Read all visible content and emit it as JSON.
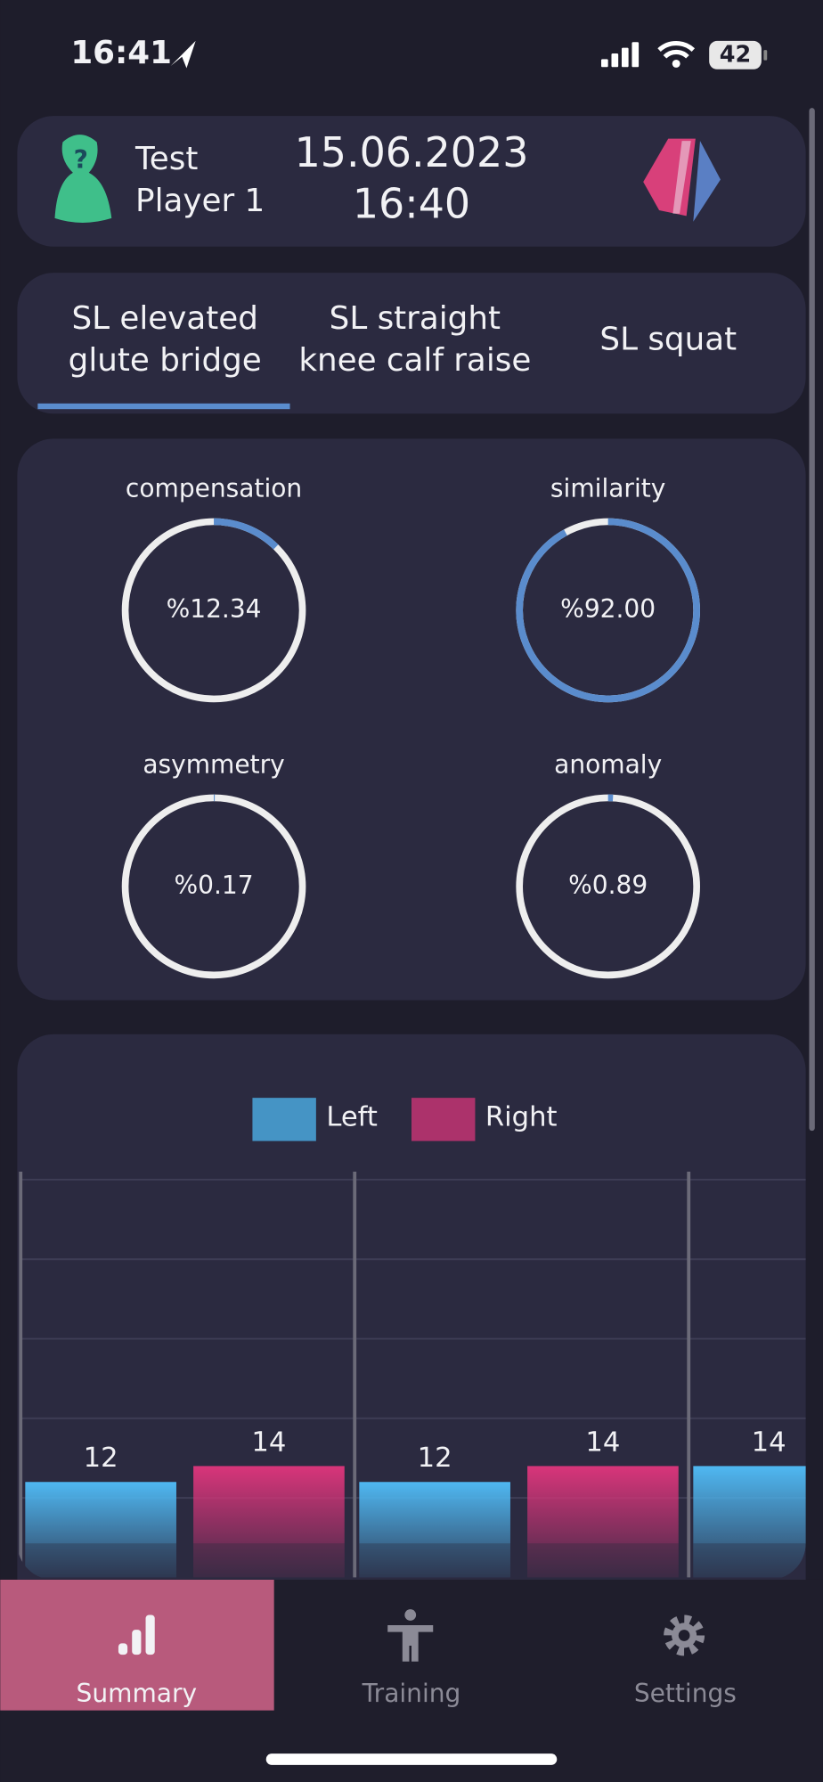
{
  "status_bar": {
    "time": "16:41",
    "battery": "42"
  },
  "header": {
    "player_first": "Test",
    "player_second": "Player 1",
    "date": "15.06.2023",
    "time": "16:40"
  },
  "tabs": {
    "items": [
      [
        "SL elevated",
        "glute bridge"
      ],
      [
        "SL straight",
        "knee calf raise"
      ],
      [
        "SL squat"
      ]
    ],
    "selected": 0
  },
  "metrics": {
    "color": "#5a8ccd",
    "items": [
      {
        "label": "compensation",
        "value": 12.34,
        "value_label": "%12.34"
      },
      {
        "label": "similarity",
        "value": 92.0,
        "value_label": "%92.00"
      },
      {
        "label": "asymmetry",
        "value": 0.17,
        "value_label": "%0.17"
      },
      {
        "label": "anomaly",
        "value": 0.89,
        "value_label": "%0.89"
      }
    ]
  },
  "chart_data": {
    "type": "bar",
    "categories": [
      null,
      null,
      null
    ],
    "series": [
      {
        "name": "Left",
        "color": "#4fb8f2",
        "values": [
          12,
          12,
          14
        ]
      },
      {
        "name": "Right",
        "color": "#d8357a",
        "values": [
          14,
          14,
          null
        ]
      }
    ],
    "ylim": [
      0,
      51
    ],
    "yticks": [
      10,
      20,
      30,
      40,
      50
    ],
    "grid": true,
    "legend": "top"
  },
  "nav": {
    "items": [
      "Summary",
      "Training",
      "Settings"
    ],
    "selected": 0
  }
}
